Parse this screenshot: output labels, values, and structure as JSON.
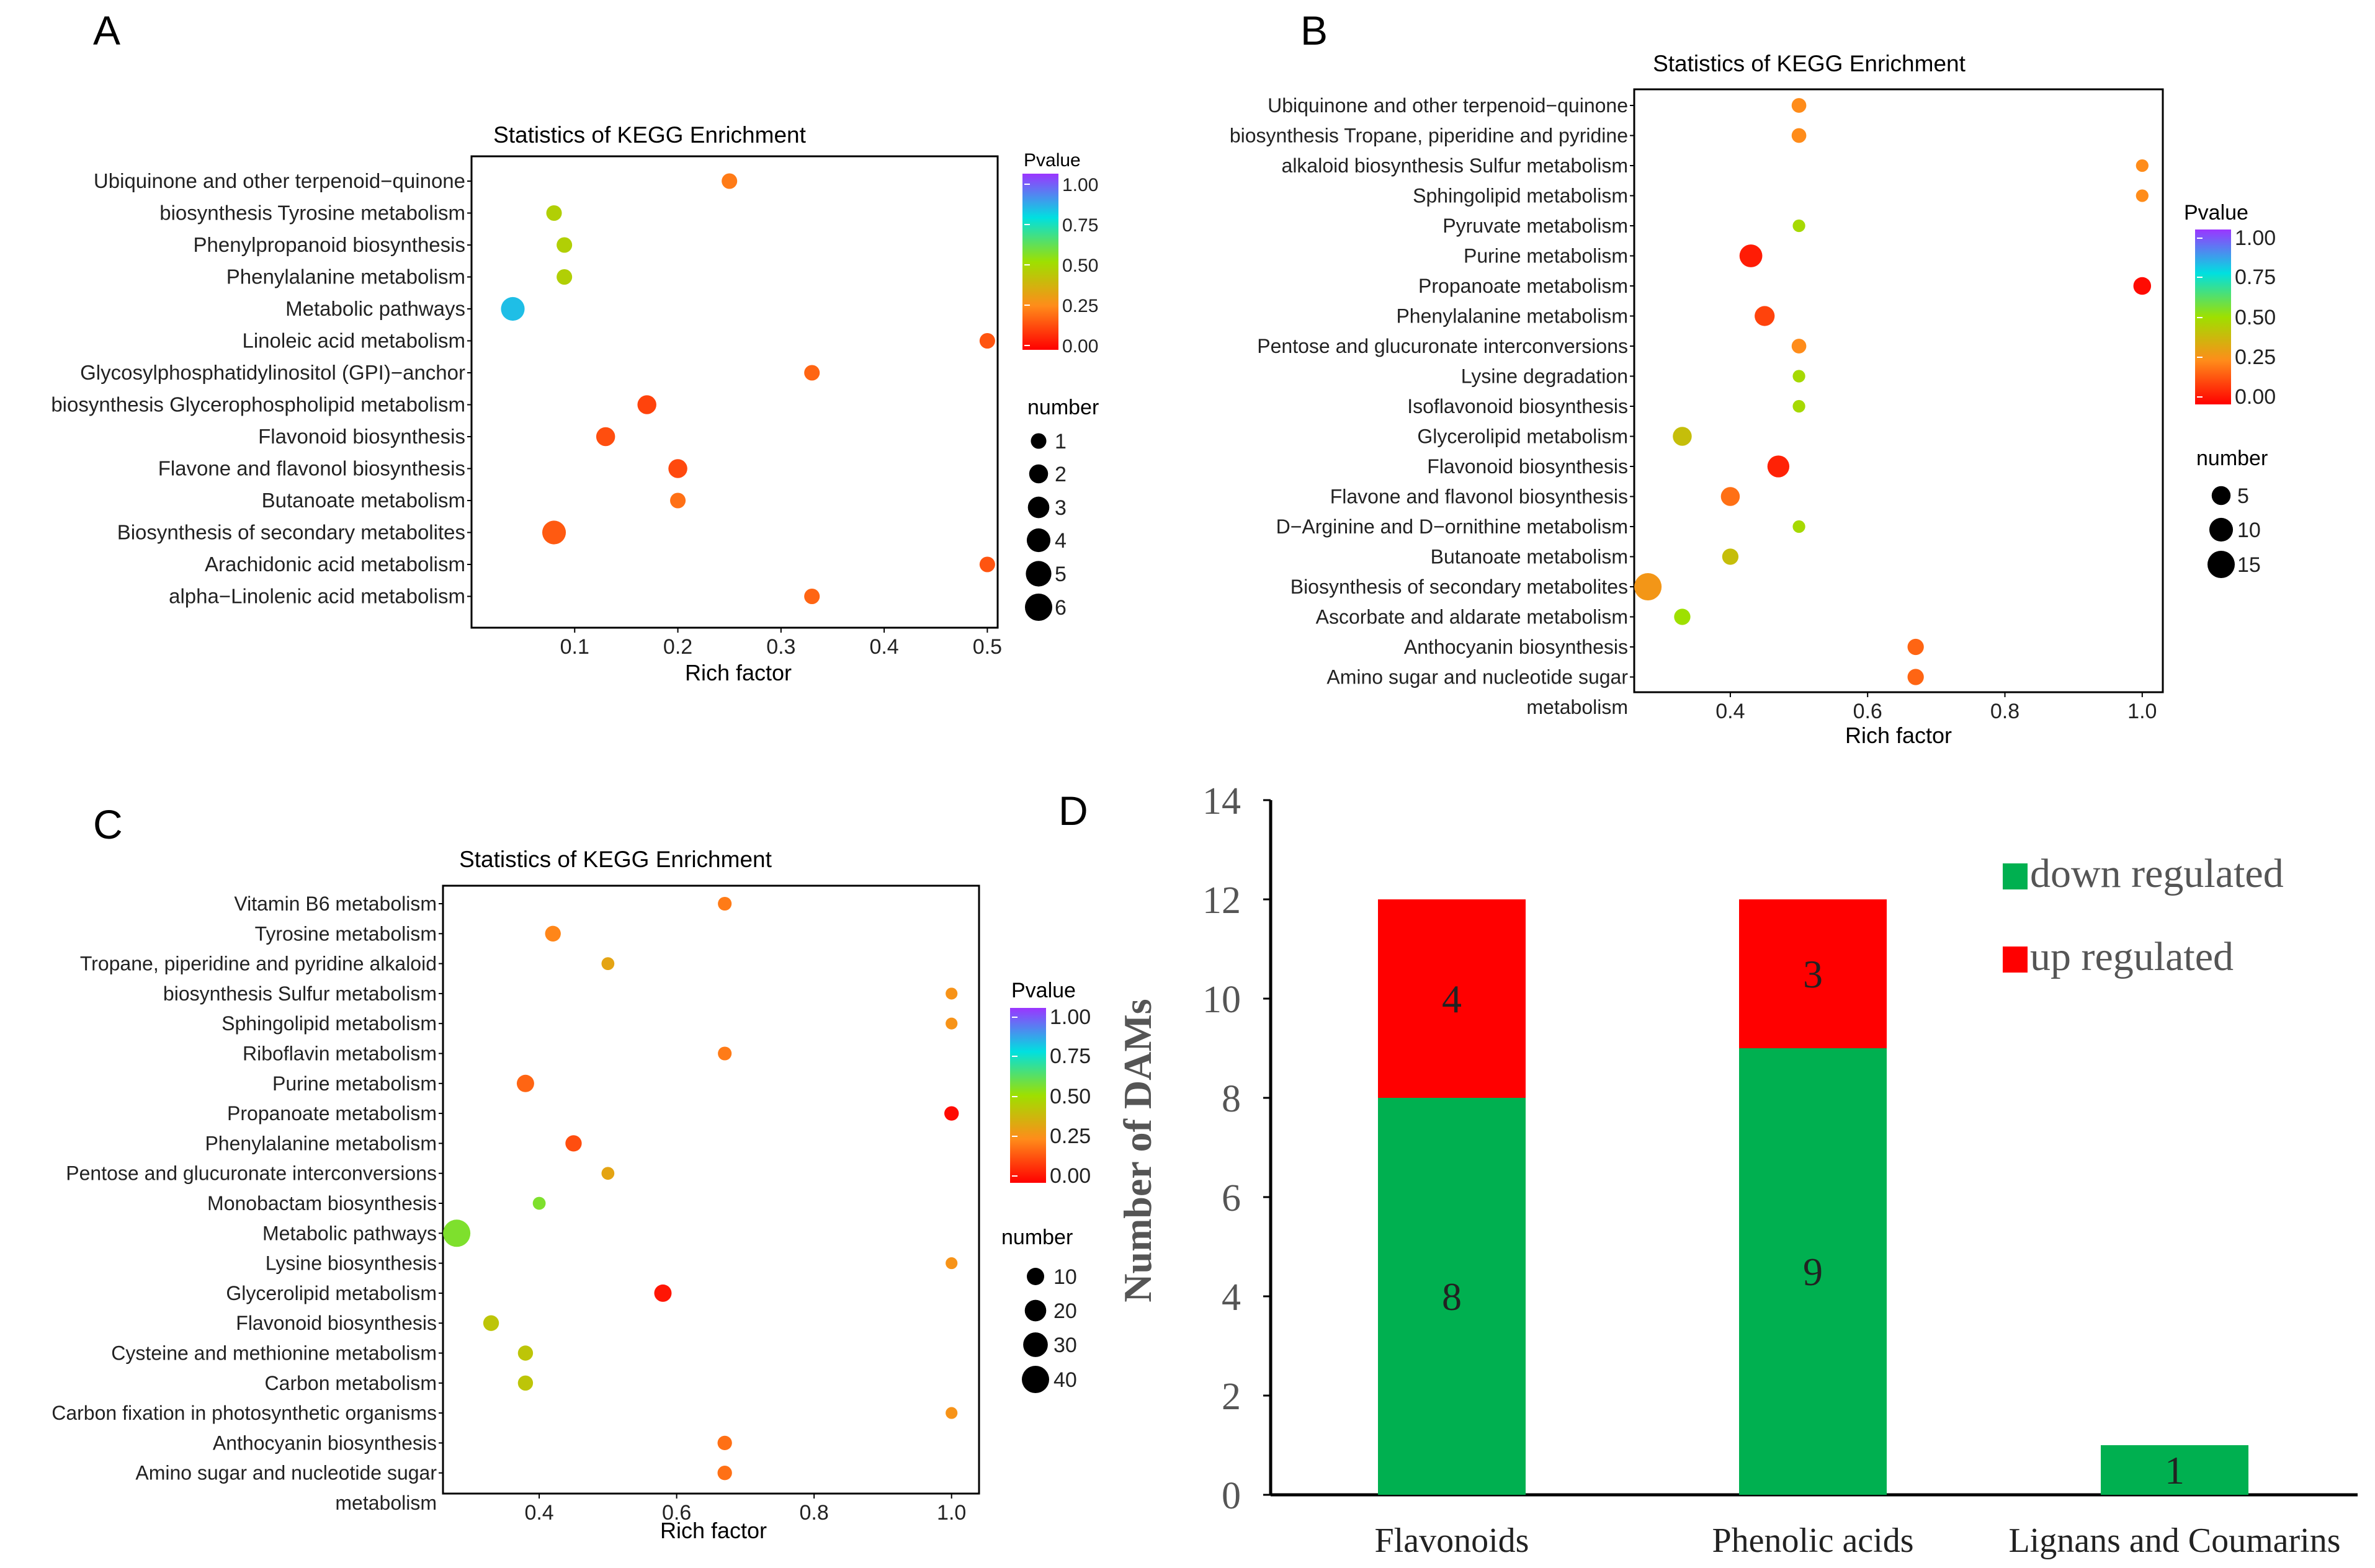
{
  "panel_labels": [
    "A",
    "B",
    "C",
    "D"
  ],
  "chart_data": [
    {
      "id": "A",
      "type": "scatter",
      "title": "Statistics of KEGG Enrichment",
      "xlabel": "Rich factor",
      "ylabel": "",
      "xlim": [
        0.0,
        0.51
      ],
      "xticks": [
        0.1,
        0.2,
        0.3,
        0.4,
        0.5
      ],
      "xtick_labels": [
        "0.1",
        "0.2",
        "0.3",
        "0.4",
        "0.5"
      ],
      "grid": false,
      "categories": [
        "Ubiquinone and other terpenoid−quinone",
        "biosynthesis Tyrosine metabolism",
        "Phenylpropanoid biosynthesis",
        "Phenylalanine metabolism",
        "Metabolic pathways",
        "Linoleic acid metabolism",
        "Glycosylphosphatidylinositol (GPI)−anchor",
        "biosynthesis Glycerophospholipid metabolism",
        "Flavonoid biosynthesis",
        "Flavone and flavonol biosynthesis",
        "Butanoate metabolism",
        "Biosynthesis of secondary metabolites",
        "Arachidonic acid metabolism",
        "alpha−Linolenic acid metabolism"
      ],
      "extra_labels": [],
      "points": [
        {
          "term": 0,
          "x": 0.25,
          "number": 1,
          "pvalue": 0.22
        },
        {
          "term": 1,
          "x": 0.08,
          "number": 1,
          "pvalue": 0.45
        },
        {
          "term": 2,
          "x": 0.09,
          "number": 1,
          "pvalue": 0.45
        },
        {
          "term": 3,
          "x": 0.09,
          "number": 1,
          "pvalue": 0.45
        },
        {
          "term": 4,
          "x": 0.04,
          "number": 4,
          "pvalue": 0.8
        },
        {
          "term": 5,
          "x": 0.5,
          "number": 1,
          "pvalue": 0.15
        },
        {
          "term": 6,
          "x": 0.33,
          "number": 1,
          "pvalue": 0.18
        },
        {
          "term": 7,
          "x": 0.17,
          "number": 2,
          "pvalue": 0.12
        },
        {
          "term": 8,
          "x": 0.13,
          "number": 2,
          "pvalue": 0.14
        },
        {
          "term": 9,
          "x": 0.2,
          "number": 2,
          "pvalue": 0.13
        },
        {
          "term": 10,
          "x": 0.2,
          "number": 1,
          "pvalue": 0.2
        },
        {
          "term": 11,
          "x": 0.08,
          "number": 4,
          "pvalue": 0.16
        },
        {
          "term": 12,
          "x": 0.5,
          "number": 1,
          "pvalue": 0.15
        },
        {
          "term": 13,
          "x": 0.33,
          "number": 1,
          "pvalue": 0.18
        }
      ],
      "color_legend": {
        "title": "Pvalue",
        "min": 0.0,
        "max": 1.0,
        "ticks": [
          "1.00",
          "0.75",
          "0.50",
          "0.25",
          "0.00"
        ]
      },
      "size_legend": {
        "title": "number",
        "entries": [
          "1",
          "2",
          "3",
          "4",
          "5",
          "6"
        ],
        "values": [
          1,
          2,
          3,
          4,
          5,
          6
        ]
      }
    },
    {
      "id": "B",
      "type": "scatter",
      "title": "Statistics of KEGG Enrichment",
      "xlabel": "Rich factor",
      "ylabel": "",
      "xlim": [
        0.26,
        1.03
      ],
      "xticks": [
        0.4,
        0.6,
        0.8,
        1.0
      ],
      "xtick_labels": [
        "0.4",
        "0.6",
        "0.8",
        "1.0"
      ],
      "grid": false,
      "categories": [
        "Ubiquinone and other terpenoid−quinone",
        "biosynthesis Tropane, piperidine and pyridine",
        "alkaloid biosynthesis Sulfur metabolism",
        "Sphingolipid metabolism",
        "Pyruvate metabolism",
        "Purine metabolism",
        "Propanoate metabolism",
        "Phenylalanine metabolism",
        "Pentose and glucuronate interconversions",
        "Lysine degradation",
        "Isoflavonoid biosynthesis",
        "Glycerolipid metabolism",
        "Flavonoid biosynthesis",
        "Flavone and flavonol biosynthesis",
        "D−Arginine and D−ornithine metabolism",
        "Butanoate metabolism",
        "Biosynthesis of secondary metabolites",
        "Ascorbate and aldarate metabolism",
        "Anthocyanin biosynthesis",
        "Amino sugar and nucleotide sugar"
      ],
      "extra_labels": [
        "metabolism"
      ],
      "points": [
        {
          "term": 0,
          "x": 0.5,
          "number": 2,
          "pvalue": 0.25
        },
        {
          "term": 1,
          "x": 0.5,
          "number": 2,
          "pvalue": 0.25
        },
        {
          "term": 2,
          "x": 1.0,
          "number": 1,
          "pvalue": 0.25
        },
        {
          "term": 3,
          "x": 1.0,
          "number": 1,
          "pvalue": 0.25
        },
        {
          "term": 4,
          "x": 0.5,
          "number": 1,
          "pvalue": 0.48
        },
        {
          "term": 5,
          "x": 0.43,
          "number": 9,
          "pvalue": 0.05
        },
        {
          "term": 6,
          "x": 1.0,
          "number": 4,
          "pvalue": 0.02
        },
        {
          "term": 7,
          "x": 0.45,
          "number": 6,
          "pvalue": 0.12
        },
        {
          "term": 8,
          "x": 0.5,
          "number": 2,
          "pvalue": 0.25
        },
        {
          "term": 9,
          "x": 0.5,
          "number": 1,
          "pvalue": 0.48
        },
        {
          "term": 10,
          "x": 0.5,
          "number": 1,
          "pvalue": 0.48
        },
        {
          "term": 11,
          "x": 0.33,
          "number": 5,
          "pvalue": 0.4
        },
        {
          "term": 12,
          "x": 0.47,
          "number": 8,
          "pvalue": 0.06
        },
        {
          "term": 13,
          "x": 0.4,
          "number": 5,
          "pvalue": 0.2
        },
        {
          "term": 14,
          "x": 0.5,
          "number": 1,
          "pvalue": 0.48
        },
        {
          "term": 15,
          "x": 0.4,
          "number": 3,
          "pvalue": 0.4
        },
        {
          "term": 16,
          "x": 0.28,
          "number": 15,
          "pvalue": 0.28
        },
        {
          "term": 17,
          "x": 0.33,
          "number": 3,
          "pvalue": 0.5
        },
        {
          "term": 18,
          "x": 0.67,
          "number": 3,
          "pvalue": 0.18
        },
        {
          "term": 19,
          "x": 0.67,
          "number": 3,
          "pvalue": 0.18
        }
      ],
      "color_legend": {
        "title": "Pvalue",
        "min": 0.0,
        "max": 1.0,
        "ticks": [
          "1.00",
          "0.75",
          "0.50",
          "0.25",
          "0.00"
        ]
      },
      "size_legend": {
        "title": "number",
        "entries": [
          "5",
          "10",
          "15"
        ],
        "values": [
          5,
          10,
          15
        ]
      }
    },
    {
      "id": "C",
      "type": "scatter",
      "title": "Statistics of KEGG Enrichment",
      "xlabel": "Rich factor",
      "ylabel": "",
      "xlim": [
        0.26,
        1.04
      ],
      "xticks": [
        0.4,
        0.6,
        0.8,
        1.0
      ],
      "xtick_labels": [
        "0.4",
        "0.6",
        "0.8",
        "1.0"
      ],
      "grid": false,
      "categories": [
        "Vitamin B6 metabolism",
        "Tyrosine metabolism",
        "Tropane, piperidine and pyridine alkaloid",
        "biosynthesis Sulfur metabolism",
        "Sphingolipid metabolism",
        "Riboflavin metabolism",
        "Purine metabolism",
        "Propanoate metabolism",
        "Phenylalanine metabolism",
        "Pentose and glucuronate interconversions",
        "Monobactam biosynthesis",
        "Metabolic pathways",
        "Lysine biosynthesis",
        "Glycerolipid metabolism",
        "Flavonoid biosynthesis",
        "Cysteine and methionine metabolism",
        "Carbon metabolism",
        "Carbon fixation in photosynthetic organisms",
        "Anthocyanin biosynthesis",
        "Amino sugar and nucleotide sugar"
      ],
      "extra_labels": [
        "metabolism"
      ],
      "points": [
        {
          "term": 0,
          "x": 0.67,
          "number": 4,
          "pvalue": 0.22
        },
        {
          "term": 1,
          "x": 0.42,
          "number": 7,
          "pvalue": 0.24
        },
        {
          "term": 2,
          "x": 0.5,
          "number": 3,
          "pvalue": 0.32
        },
        {
          "term": 3,
          "x": 1.0,
          "number": 2,
          "pvalue": 0.27
        },
        {
          "term": 4,
          "x": 1.0,
          "number": 2,
          "pvalue": 0.27
        },
        {
          "term": 5,
          "x": 0.67,
          "number": 4,
          "pvalue": 0.22
        },
        {
          "term": 6,
          "x": 0.38,
          "number": 10,
          "pvalue": 0.18
        },
        {
          "term": 7,
          "x": 1.0,
          "number": 5,
          "pvalue": 0.02
        },
        {
          "term": 8,
          "x": 0.45,
          "number": 8,
          "pvalue": 0.14
        },
        {
          "term": 9,
          "x": 0.5,
          "number": 3,
          "pvalue": 0.32
        },
        {
          "term": 10,
          "x": 0.4,
          "number": 3,
          "pvalue": 0.55
        },
        {
          "term": 11,
          "x": 0.28,
          "number": 40,
          "pvalue": 0.55
        },
        {
          "term": 12,
          "x": 1.0,
          "number": 2,
          "pvalue": 0.27
        },
        {
          "term": 13,
          "x": 0.58,
          "number": 10,
          "pvalue": 0.04
        },
        {
          "term": 14,
          "x": 0.33,
          "number": 7,
          "pvalue": 0.42
        },
        {
          "term": 15,
          "x": 0.38,
          "number": 6,
          "pvalue": 0.42
        },
        {
          "term": 16,
          "x": 0.38,
          "number": 6,
          "pvalue": 0.42
        },
        {
          "term": 17,
          "x": 1.0,
          "number": 2,
          "pvalue": 0.27
        },
        {
          "term": 18,
          "x": 0.67,
          "number": 5,
          "pvalue": 0.2
        },
        {
          "term": 19,
          "x": 0.67,
          "number": 5,
          "pvalue": 0.2
        }
      ],
      "color_legend": {
        "title": "Pvalue",
        "min": 0.0,
        "max": 1.0,
        "ticks": [
          "1.00",
          "0.75",
          "0.50",
          "0.25",
          "0.00"
        ]
      },
      "size_legend": {
        "title": "number",
        "entries": [
          "10",
          "20",
          "30",
          "40"
        ],
        "values": [
          10,
          20,
          30,
          40
        ]
      }
    },
    {
      "id": "D",
      "type": "bar",
      "stacked": true,
      "title": "",
      "xlabel": "",
      "ylabel": "Number of DAMs",
      "ylim": [
        0,
        14
      ],
      "yticks": [
        "0",
        "2",
        "4",
        "6",
        "8",
        "10",
        "12",
        "14"
      ],
      "categories": [
        "Flavonoids",
        "Phenolic acids",
        "Lignans and Coumarins"
      ],
      "series": [
        {
          "name": "down regulated",
          "color": "#00b050",
          "values": [
            8,
            9,
            1
          ],
          "labels": [
            "8",
            "9",
            "1"
          ]
        },
        {
          "name": "up regulated",
          "color": "#ff0000",
          "values": [
            4,
            3,
            0
          ],
          "labels": [
            "4",
            "3",
            ""
          ]
        }
      ],
      "legend": [
        "down regulated",
        "up regulated"
      ]
    }
  ]
}
